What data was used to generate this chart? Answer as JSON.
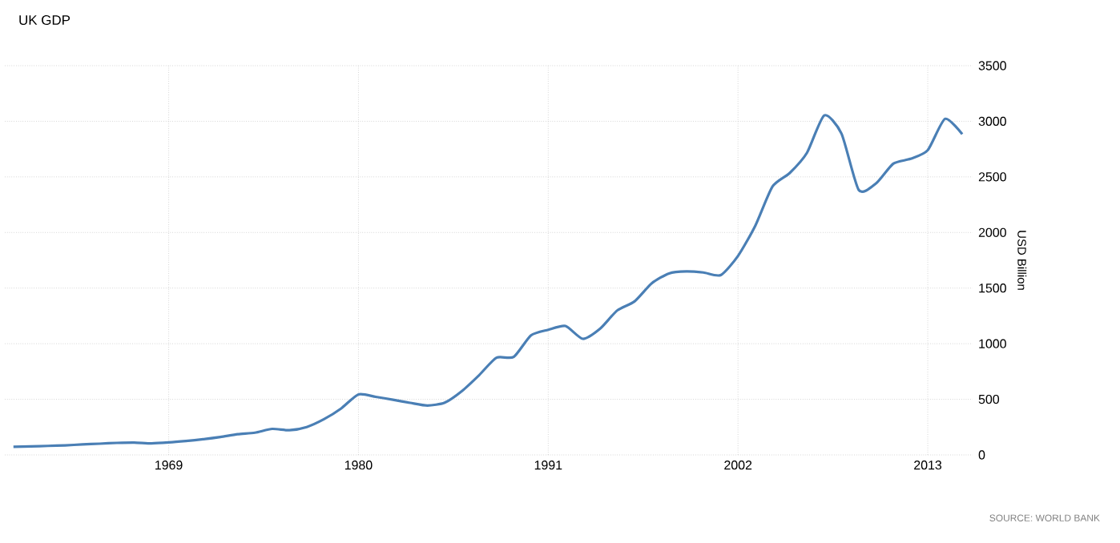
{
  "chart_data": {
    "type": "line",
    "title": "UK GDP",
    "ylabel": "USD Billion",
    "annotations": [
      "SOURCE: WORLD BANK"
    ],
    "x": [
      1960,
      1961,
      1962,
      1963,
      1964,
      1965,
      1966,
      1967,
      1968,
      1969,
      1970,
      1971,
      1972,
      1973,
      1974,
      1975,
      1976,
      1977,
      1978,
      1979,
      1980,
      1981,
      1982,
      1983,
      1984,
      1985,
      1986,
      1987,
      1988,
      1989,
      1990,
      1991,
      1992,
      1993,
      1994,
      1995,
      1996,
      1997,
      1998,
      1999,
      2000,
      2001,
      2002,
      2003,
      2004,
      2005,
      2006,
      2007,
      2008,
      2009,
      2010,
      2011,
      2012,
      2013,
      2014,
      2015
    ],
    "series": [
      {
        "color": "#4a7fb5",
        "values": [
          73,
          77,
          81,
          86,
          94,
          101,
          108,
          111,
          104,
          112,
          125,
          141,
          161,
          186,
          200,
          234,
          222,
          251,
          321,
          418,
          544,
          522,
          496,
          468,
          444,
          470,
          575,
          718,
          874,
          881,
          1075,
          1125,
          1159,
          1044,
          1134,
          1299,
          1380,
          1543,
          1632,
          1650,
          1640,
          1617,
          1789,
          2060,
          2413,
          2535,
          2717,
          3053,
          2889,
          2382,
          2441,
          2619,
          2662,
          2740,
          3022,
          2885
        ]
      }
    ],
    "xlim": [
      1959.5,
      2015.6
    ],
    "ylim": [
      0,
      3500
    ],
    "xticks": [
      1969,
      1980,
      1991,
      2002,
      2013
    ],
    "yticks": [
      0,
      500,
      1000,
      1500,
      2000,
      2500,
      3000,
      3500
    ],
    "grid": true,
    "marker": "none",
    "line_style": "solid"
  }
}
